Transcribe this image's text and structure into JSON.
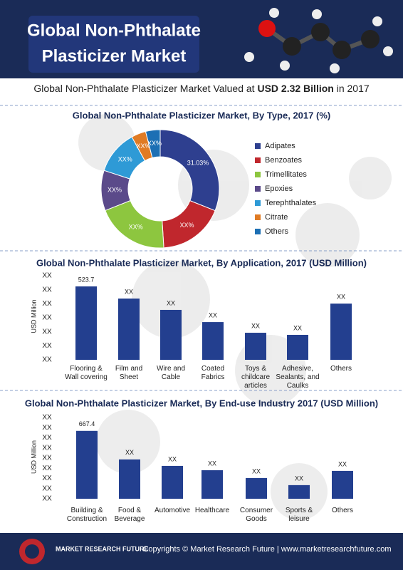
{
  "header": {
    "title_lines": [
      "Global Non-Phthalate",
      "Plasticizer Market"
    ],
    "subtitle": {
      "before": "Global Non-Phthalate Plasticizer Market Valued at ",
      "bold": "USD 2.32 Billion",
      "after": " in 2017"
    }
  },
  "chart_data": [
    {
      "type": "pie",
      "title": "Global Non-Phthalate Plasticizer Market, By Type, 2017 (%)",
      "categories": [
        "Adipates",
        "Benzoates",
        "Trimellitates",
        "Epoxies",
        "Terephthalates",
        "Citrate",
        "Others"
      ],
      "values": [
        31.03,
        18,
        20,
        11,
        12,
        4,
        3.97
      ],
      "value_labels": [
        "31.03%",
        "XX%",
        "XX%",
        "XX%",
        "XX%",
        "XX%",
        "XX%"
      ],
      "colors": [
        "#2e3f8f",
        "#c0272d",
        "#8dc63f",
        "#5b4a8a",
        "#2e9ad6",
        "#e07b24",
        "#1c6fb4"
      ],
      "legend": "right"
    },
    {
      "type": "bar",
      "title": "Global Non-Phthalate Plasticizer Market, By Application, 2017 (USD Million)",
      "y_label": "USD Million",
      "categories": [
        "Flooring &\nWall covering",
        "Film and\nSheet",
        "Wire and\nCable",
        "Coated\nFabrics",
        "Toys &\nchildcare\narticles",
        "Adhesive,\nSealants, and\nCaulks",
        "Others"
      ],
      "values": [
        523.7,
        437,
        356,
        269,
        193,
        178,
        401
      ],
      "value_labels": [
        "523.7",
        "XX",
        "XX",
        "XX",
        "XX",
        "XX",
        "XX"
      ],
      "color": "#233f8f",
      "ylim": [
        0,
        620
      ],
      "yticks": [
        {
          "value": 0,
          "label": "XX"
        },
        {
          "value": 100,
          "label": "XX"
        },
        {
          "value": 200,
          "label": "XX"
        },
        {
          "value": 300,
          "label": "XX"
        },
        {
          "value": 400,
          "label": "XX"
        },
        {
          "value": 500,
          "label": "XX"
        },
        {
          "value": 600,
          "label": "XX"
        }
      ]
    },
    {
      "type": "bar",
      "title": "Global Non-Phthalate Plasticizer Market, By End-use Industry 2017 (USD Million)",
      "y_label": "USD Million",
      "categories": [
        "Building &\nConstruction",
        "Food &\nBeverage",
        "Automotive",
        "Healthcare",
        "Consumer\nGoods",
        "Sports &\nleisure",
        "Others"
      ],
      "values": [
        667.4,
        387,
        323,
        281,
        204,
        134,
        274
      ],
      "value_labels": [
        "667.4",
        "XX",
        "XX",
        "XX",
        "XX",
        "XX",
        "XX"
      ],
      "color": "#233f8f",
      "ylim": [
        0,
        820
      ],
      "yticks": [
        {
          "value": 0,
          "label": "XX"
        },
        {
          "value": 100,
          "label": "XX"
        },
        {
          "value": 200,
          "label": "XX"
        },
        {
          "value": 300,
          "label": "XX"
        },
        {
          "value": 400,
          "label": "XX"
        },
        {
          "value": 500,
          "label": "XX"
        },
        {
          "value": 600,
          "label": "XX"
        },
        {
          "value": 700,
          "label": "XX"
        },
        {
          "value": 800,
          "label": "XX"
        }
      ]
    }
  ],
  "footer": {
    "brand": "MARKET RESEARCH FUTURE",
    "copyright": "Copyrights © Market Research Future | www.marketresearchfuture.com"
  }
}
